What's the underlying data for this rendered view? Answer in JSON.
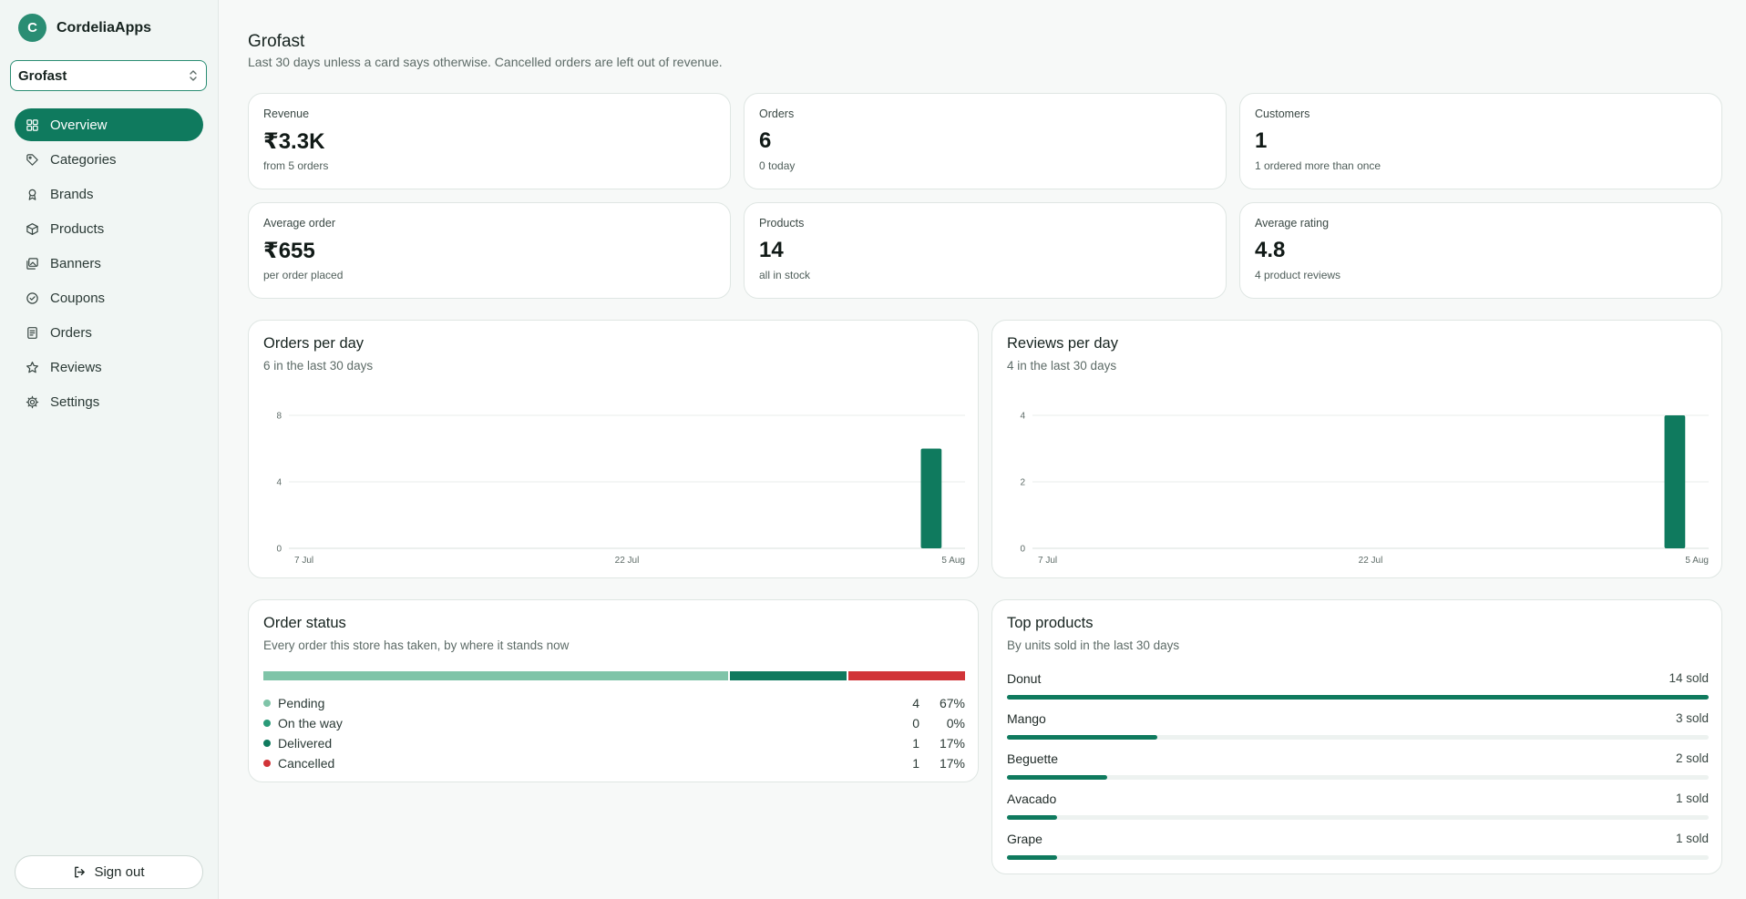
{
  "app": {
    "initial": "C",
    "name": "CordeliaApps"
  },
  "store_select": {
    "value": "Grofast"
  },
  "nav": [
    {
      "label": "Overview",
      "icon": "grid-icon",
      "active": true
    },
    {
      "label": "Categories",
      "icon": "tag-icon"
    },
    {
      "label": "Brands",
      "icon": "award-icon"
    },
    {
      "label": "Products",
      "icon": "box-icon"
    },
    {
      "label": "Banners",
      "icon": "images-icon"
    },
    {
      "label": "Coupons",
      "icon": "coupon-icon"
    },
    {
      "label": "Orders",
      "icon": "document-icon"
    },
    {
      "label": "Reviews",
      "icon": "star-icon"
    },
    {
      "label": "Settings",
      "icon": "gear-icon"
    }
  ],
  "sign_out": "Sign out",
  "page": {
    "title": "Grofast",
    "subtitle": "Last 30 days unless a card says otherwise. Cancelled orders are left out of revenue."
  },
  "stats": [
    {
      "label": "Revenue",
      "value": "₹3.3K",
      "note": "from 5 orders"
    },
    {
      "label": "Orders",
      "value": "6",
      "note": "0 today"
    },
    {
      "label": "Customers",
      "value": "1",
      "note": "1 ordered more than once"
    },
    {
      "label": "Average order",
      "value": "₹655",
      "note": "per order placed"
    },
    {
      "label": "Products",
      "value": "14",
      "note": "all in stock"
    },
    {
      "label": "Average rating",
      "value": "4.8",
      "note": "4 product reviews"
    }
  ],
  "chart_data": [
    {
      "type": "bar",
      "title": "Orders per day",
      "subtitle": "6 in the last 30 days",
      "x_tick_labels": [
        "7 Jul",
        "22 Jul",
        "5 Aug"
      ],
      "y_ticks": [
        0,
        4,
        8
      ],
      "ylim": [
        0,
        8
      ],
      "num_days": 30,
      "values": [
        0,
        0,
        0,
        0,
        0,
        0,
        0,
        0,
        0,
        0,
        0,
        0,
        0,
        0,
        0,
        0,
        0,
        0,
        0,
        0,
        0,
        0,
        0,
        0,
        0,
        0,
        0,
        0,
        6,
        0
      ],
      "color": "#0f7a5e",
      "grid": true
    },
    {
      "type": "bar",
      "title": "Reviews per day",
      "subtitle": "4 in the last 30 days",
      "x_tick_labels": [
        "7 Jul",
        "22 Jul",
        "5 Aug"
      ],
      "y_ticks": [
        0,
        2,
        4
      ],
      "ylim": [
        0,
        4
      ],
      "num_days": 30,
      "values": [
        0,
        0,
        0,
        0,
        0,
        0,
        0,
        0,
        0,
        0,
        0,
        0,
        0,
        0,
        0,
        0,
        0,
        0,
        0,
        0,
        0,
        0,
        0,
        0,
        0,
        0,
        0,
        0,
        4,
        0
      ],
      "color": "#0f7a5e",
      "grid": true
    }
  ],
  "order_status": {
    "title": "Order status",
    "subtitle": "Every order this store has taken, by where it stands now",
    "items": [
      {
        "name": "Pending",
        "count": "4",
        "pct": "67%",
        "fraction": 0.666,
        "color": "#7fc4a8"
      },
      {
        "name": "On the way",
        "count": "0",
        "pct": "0%",
        "fraction": 0.0,
        "color": "#2a9a78"
      },
      {
        "name": "Delivered",
        "count": "1",
        "pct": "17%",
        "fraction": 0.167,
        "color": "#0f7a5e"
      },
      {
        "name": "Cancelled",
        "count": "1",
        "pct": "17%",
        "fraction": 0.167,
        "color": "#d13438"
      }
    ]
  },
  "top_products": {
    "title": "Top products",
    "subtitle": "By units sold in the last 30 days",
    "items": [
      {
        "name": "Donut",
        "sold": "14 sold",
        "units": 14
      },
      {
        "name": "Mango",
        "sold": "3 sold",
        "units": 3
      },
      {
        "name": "Beguette",
        "sold": "2 sold",
        "units": 2
      },
      {
        "name": "Avacado",
        "sold": "1 sold",
        "units": 1
      },
      {
        "name": "Grape",
        "sold": "1 sold",
        "units": 1
      }
    ]
  }
}
